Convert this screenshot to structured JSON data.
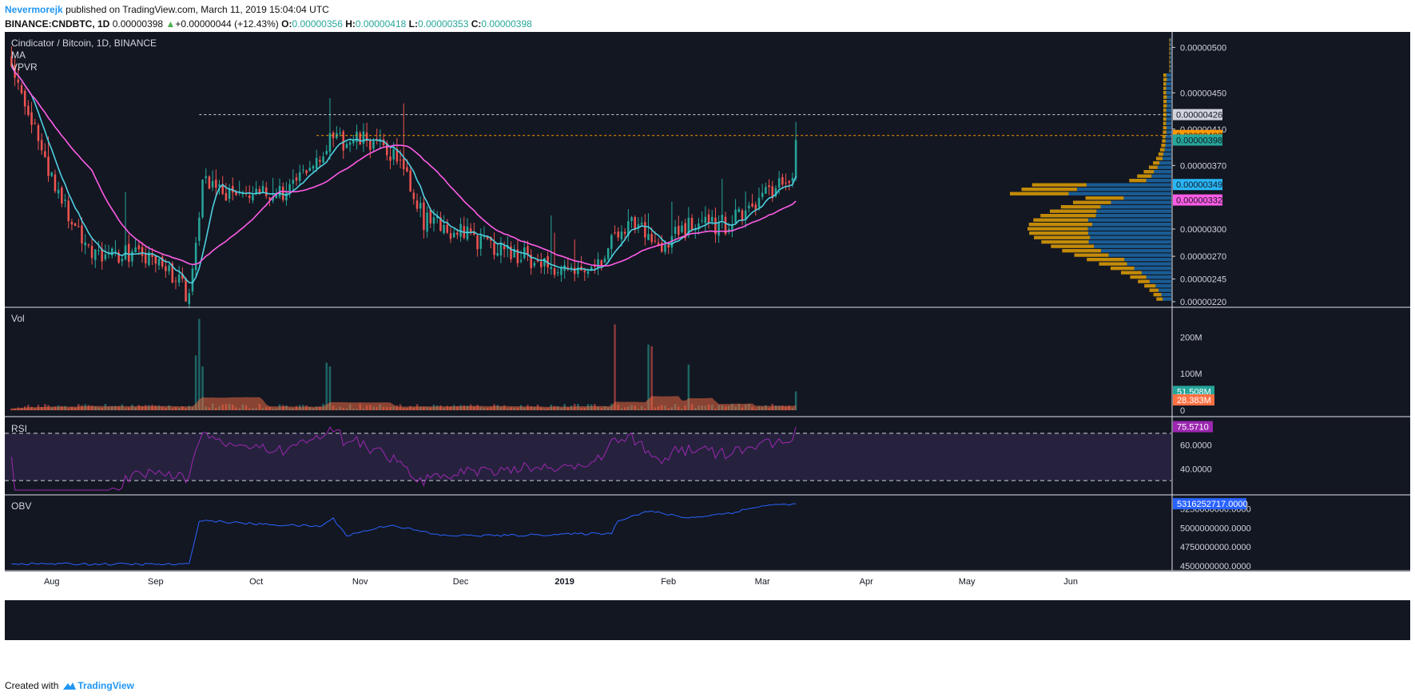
{
  "header": {
    "author": "Nevermorejk",
    "published": "published on TradingView.com, March 11, 2019 15:04:04 UTC",
    "symbol": "BINANCE:CNDBTC, 1D",
    "last": "0.00000398",
    "change": "+0.00000044 (+12.43%)",
    "o_label": "O:",
    "o": "0.00000356",
    "h_label": "H:",
    "h": "0.00000418",
    "l_label": "L:",
    "l": "0.00000353",
    "c_label": "C:",
    "c": "0.00000398"
  },
  "footer": {
    "created": "Created with",
    "brand": "TradingView"
  },
  "panes": {
    "main": {
      "title": "Cindicator / Bitcoin, 1D, BINANCE",
      "ind1": "MA",
      "ind2": "VPVR"
    },
    "vol": {
      "title": "Vol"
    },
    "rsi": {
      "title": "RSI"
    },
    "obv": {
      "title": "OBV"
    }
  },
  "colors": {
    "background": "#131722",
    "up": "#26a69a",
    "down": "#ef5350",
    "ma_fast": "#4dd0e1",
    "ma_slow": "#ff5ce6",
    "vol_ma": "#ff7043",
    "rsi": "#9c27b0",
    "obv": "#2962ff",
    "vpvr_up": "#2196f3",
    "vpvr_down": "#ffb300"
  },
  "chart_data": [
    {
      "type": "candlestick",
      "pane": "price",
      "title": "Cindicator / Bitcoin, 1D, BINANCE",
      "x_ticks": [
        "Aug",
        "Sep",
        "Oct",
        "Nov",
        "Dec",
        "2019",
        "Feb",
        "Mar",
        "Apr",
        "May",
        "Jun"
      ],
      "y_ticks": [
        "0.00000220",
        "0.00000245",
        "0.00000270",
        "0.00000300",
        "0.00000370",
        "0.00000410",
        "0.00000450",
        "0.00000500"
      ],
      "ylim": [
        2.2e-06,
        5.1e-06
      ],
      "price_close_path": [
        {
          "date": "2018-07-20",
          "price": 4.88e-06
        },
        {
          "date": "2018-07-28",
          "price": 3.95e-06
        },
        {
          "date": "2018-08-06",
          "price": 3.15e-06
        },
        {
          "date": "2018-08-15",
          "price": 2.68e-06
        },
        {
          "date": "2018-08-25",
          "price": 2.75e-06
        },
        {
          "date": "2018-09-05",
          "price": 2.55e-06
        },
        {
          "date": "2018-09-11",
          "price": 2.25e-06
        },
        {
          "date": "2018-09-15",
          "price": 3.55e-06
        },
        {
          "date": "2018-09-22",
          "price": 3.4e-06
        },
        {
          "date": "2018-10-01",
          "price": 3.35e-06
        },
        {
          "date": "2018-10-12",
          "price": 3.45e-06
        },
        {
          "date": "2018-10-22",
          "price": 3.95e-06
        },
        {
          "date": "2018-11-03",
          "price": 3.98e-06
        },
        {
          "date": "2018-11-12",
          "price": 3.8e-06
        },
        {
          "date": "2018-11-20",
          "price": 3.1e-06
        },
        {
          "date": "2018-11-28",
          "price": 3e-06
        },
        {
          "date": "2018-12-08",
          "price": 2.85e-06
        },
        {
          "date": "2018-12-20",
          "price": 2.7e-06
        },
        {
          "date": "2018-12-30",
          "price": 2.58e-06
        },
        {
          "date": "2019-01-10",
          "price": 2.6e-06
        },
        {
          "date": "2019-01-20",
          "price": 3.1e-06
        },
        {
          "date": "2019-01-30",
          "price": 2.85e-06
        },
        {
          "date": "2019-02-08",
          "price": 3.05e-06
        },
        {
          "date": "2019-02-18",
          "price": 3.05e-06
        },
        {
          "date": "2019-02-28",
          "price": 3.35e-06
        },
        {
          "date": "2019-03-06",
          "price": 3.45e-06
        },
        {
          "date": "2019-03-10",
          "price": 3.56e-06
        },
        {
          "date": "2019-03-11",
          "price": 3.98e-06
        }
      ],
      "lines": [
        {
          "label": "0.00000426",
          "price": 4.26e-06,
          "color": "#d1d4dc",
          "style": "dotted"
        },
        {
          "label": "0.00000403",
          "price": 4.03e-06,
          "color": "#ff9800",
          "style": "dotted"
        }
      ],
      "last_value_tags": [
        {
          "label": "0.00000426",
          "price": 4.26e-06,
          "color": "#d1d4dc"
        },
        {
          "label": "0.00000403",
          "price": 4.03e-06,
          "color": "#ff9800"
        },
        {
          "label": "0.00000398",
          "price": 3.98e-06,
          "color": "#26a69a"
        },
        {
          "label": "0.00000349",
          "price": 3.49e-06,
          "color": "#29b6f6"
        },
        {
          "label": "0.00000332",
          "price": 3.32e-06,
          "color": "#ff5ce6"
        }
      ]
    },
    {
      "type": "bar",
      "pane": "volume",
      "title": "Vol",
      "y_ticks": [
        "0",
        "100M",
        "200M"
      ],
      "ylim": [
        0,
        260000000
      ],
      "spikes": [
        {
          "date": "2018-09-13",
          "value": 150000000
        },
        {
          "date": "2018-09-14",
          "value": 250000000
        },
        {
          "date": "2018-09-15",
          "value": 120000000
        },
        {
          "date": "2018-10-22",
          "value": 130000000
        },
        {
          "date": "2018-10-23",
          "value": 120000000
        },
        {
          "date": "2019-01-16",
          "value": 235000000
        },
        {
          "date": "2019-01-26",
          "value": 180000000
        },
        {
          "date": "2019-01-27",
          "value": 175000000
        },
        {
          "date": "2019-02-07",
          "value": 125000000
        },
        {
          "date": "2019-03-11",
          "value": 51508000
        }
      ],
      "last_value_tags": [
        {
          "label": "51.508M",
          "value": 51508000,
          "color": "#26a69a"
        },
        {
          "label": "28.383M",
          "value": 28383000,
          "color": "#ff7043"
        }
      ]
    },
    {
      "type": "line",
      "pane": "rsi",
      "title": "RSI",
      "y_ticks": [
        "40.0000",
        "60.0000"
      ],
      "ylim": [
        22,
        80
      ],
      "bands": [
        30,
        70
      ],
      "last_value_tags": [
        {
          "label": "75.5710",
          "value": 75.571,
          "color": "#9c27b0"
        }
      ]
    },
    {
      "type": "line",
      "pane": "obv",
      "title": "OBV",
      "y_ticks": [
        "4500000000.0000",
        "4750000000.0000",
        "5000000000.0000",
        "5250000000.0000"
      ],
      "ylim": [
        4480000000,
        5370000000
      ],
      "obv_path": [
        {
          "date": "2018-07-20",
          "value": 4530000000
        },
        {
          "date": "2018-09-11",
          "value": 4520000000
        },
        {
          "date": "2018-09-14",
          "value": 5100000000
        },
        {
          "date": "2018-10-01",
          "value": 5050000000
        },
        {
          "date": "2018-10-20",
          "value": 5020000000
        },
        {
          "date": "2018-10-24",
          "value": 5120000000
        },
        {
          "date": "2018-10-28",
          "value": 4900000000
        },
        {
          "date": "2018-11-10",
          "value": 5040000000
        },
        {
          "date": "2018-11-25",
          "value": 4900000000
        },
        {
          "date": "2018-12-15",
          "value": 4900000000
        },
        {
          "date": "2019-01-15",
          "value": 4930000000
        },
        {
          "date": "2019-01-17",
          "value": 5100000000
        },
        {
          "date": "2019-01-26",
          "value": 5220000000
        },
        {
          "date": "2019-02-07",
          "value": 5130000000
        },
        {
          "date": "2019-02-20",
          "value": 5200000000
        },
        {
          "date": "2019-03-01",
          "value": 5290000000
        },
        {
          "date": "2019-03-11",
          "value": 5316252717
        }
      ],
      "last_value_tags": [
        {
          "label": "5316252717.0000",
          "value": 5316252717,
          "color": "#2962ff"
        }
      ]
    }
  ]
}
